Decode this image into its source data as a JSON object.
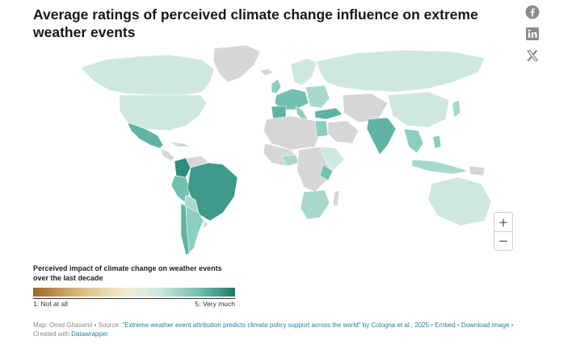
{
  "title": "Average ratings of perceived climate change influence on extreme weather events",
  "share": {
    "facebook_icon": "facebook-icon",
    "linkedin_icon": "linkedin-icon",
    "x_icon": "x-icon"
  },
  "zoom": {
    "in_label": "+",
    "out_label": "−"
  },
  "legend": {
    "title": "Perceived impact of climate change on weather events over the last decade",
    "min_label": "1: Not at all",
    "max_label": "5: Very much",
    "colors": {
      "low": "#a0662a",
      "mid": "#f3ecd2",
      "high": "#1f7a6c",
      "no_data": "#d6d6d6"
    }
  },
  "footer": {
    "map_by": "Map: Omid Ghasemi • Source: ",
    "source_link": "\"Extreme weather event attribution predicts climate policy support across the world\" by Cologna et al., 2025",
    "sep1": " • ",
    "embed": "Embed",
    "sep2": " • ",
    "download": "Download image",
    "created": " • Created with ",
    "datawrapper": "Datawrapper"
  }
}
